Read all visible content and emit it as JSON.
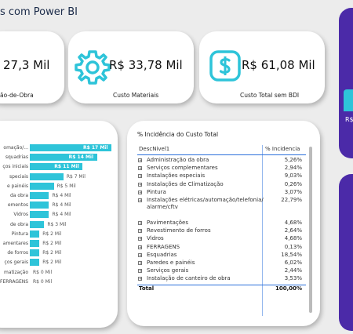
{
  "header": {
    "title": "s com Power BI"
  },
  "kpis": [
    {
      "value": "27,3 Mil",
      "label": "ão-de-Obra"
    },
    {
      "value": "R$ 33,78 Mil",
      "label": "Custo Materiais"
    },
    {
      "value": "R$ 61,08 Mil",
      "label": "Custo Total sem BDI"
    }
  ],
  "side_panel": {
    "text": "R$"
  },
  "colors": {
    "accent": "#2ec4d9",
    "purple": "#4b2aa8",
    "table_line": "#2a6fdb"
  },
  "chart_data": {
    "type": "bar",
    "orientation": "horizontal",
    "categories": [
      "omação/...",
      "squadrias",
      "ços iniciais",
      "speciais",
      "e painéis",
      "da obra",
      "ementos",
      "Vidros",
      "de obra",
      "Pintura",
      "amentares",
      "de forros",
      "ços gerais",
      "matização",
      "FERRAGENS"
    ],
    "values": [
      17,
      14,
      11,
      7,
      5,
      4,
      4,
      4,
      3,
      2,
      2,
      2,
      2,
      0,
      0
    ],
    "labels": [
      "R$ 17 Mil",
      "R$ 14 Mil",
      "R$ 11 Mil",
      "R$ 7 Mil",
      "R$ 5 Mil",
      "R$ 4 Mil",
      "R$ 4 Mil",
      "R$ 4 Mil",
      "R$ 3 Mil",
      "R$ 2 Mil",
      "R$ 2 Mil",
      "R$ 2 Mil",
      "R$ 2 Mil",
      "R$ 0 Mil",
      "R$ 0 Mil"
    ],
    "units": "Mil"
  },
  "table": {
    "title": "% Incidência do Custo Total",
    "col1": "DescNivel1",
    "col2": "% Incidencia",
    "rows": [
      {
        "name": "Administração da obra",
        "pct": "5,26%"
      },
      {
        "name": "Serviços complementares",
        "pct": "2,94%"
      },
      {
        "name": "Instalações especiais",
        "pct": "9,03%"
      },
      {
        "name": "Instalações de Climatização",
        "pct": "0,26%"
      },
      {
        "name": "Pintura",
        "pct": "3,07%"
      },
      {
        "name": "Instalações elétricas/automação/telefonia/alarme/cftv",
        "pct": "22,79%"
      },
      {
        "name": "Pavimentações",
        "pct": "4,68%"
      },
      {
        "name": "Revestimento de forros",
        "pct": "2,64%"
      },
      {
        "name": "Vidros",
        "pct": "4,68%"
      },
      {
        "name": "FERRAGENS",
        "pct": "0,13%"
      },
      {
        "name": "Esquadrias",
        "pct": "18,54%"
      },
      {
        "name": "Paredes e painéis",
        "pct": "6,02%"
      },
      {
        "name": "Serviços gerais",
        "pct": "2,44%"
      },
      {
        "name": "Instalação de canteiro de obra",
        "pct": "3,53%"
      }
    ],
    "total_label": "Total",
    "total_pct": "100,00%"
  }
}
